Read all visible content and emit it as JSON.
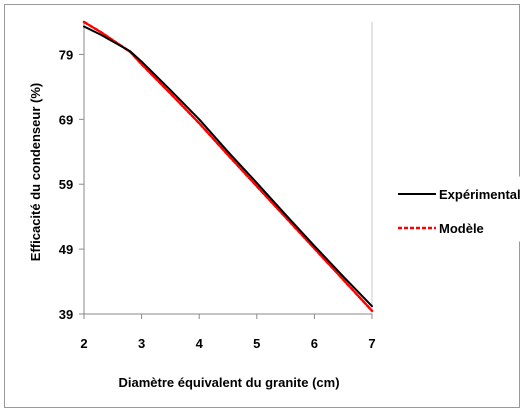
{
  "chart_data": {
    "type": "line",
    "title": "",
    "xlabel": "Diamètre équivalent du granite (cm)",
    "ylabel": "Efficacité du condenseur (%)",
    "xlim": [
      2,
      7
    ],
    "ylim": [
      39,
      84
    ],
    "x_ticks": [
      "2",
      "3",
      "4",
      "5",
      "6",
      "7"
    ],
    "y_ticks": [
      "39",
      "49",
      "59",
      "69",
      "79"
    ],
    "grid": false,
    "legend_position": "right",
    "series": [
      {
        "name": "Expérimental",
        "color": "#000000",
        "style": "solid",
        "x": [
          2.0,
          2.3,
          2.5,
          2.8,
          3.0,
          3.5,
          4.0,
          4.5,
          5.0,
          5.5,
          6.0,
          6.5,
          7.0
        ],
        "y": [
          83.3,
          82.0,
          81.0,
          79.5,
          77.9,
          73.5,
          69.0,
          64.0,
          59.2,
          54.3,
          49.5,
          44.8,
          40.2
        ]
      },
      {
        "name": "Modèle",
        "color": "#ff0000",
        "style": "dashed",
        "x": [
          2.0,
          2.3,
          2.5,
          2.8,
          3.0,
          3.5,
          4.0,
          4.5,
          5.0,
          5.5,
          6.0,
          6.5,
          7.0
        ],
        "y": [
          84.0,
          82.4,
          81.2,
          79.4,
          77.5,
          73.0,
          68.4,
          63.5,
          58.7,
          53.9,
          49.1,
          44.3,
          39.5
        ]
      }
    ]
  }
}
